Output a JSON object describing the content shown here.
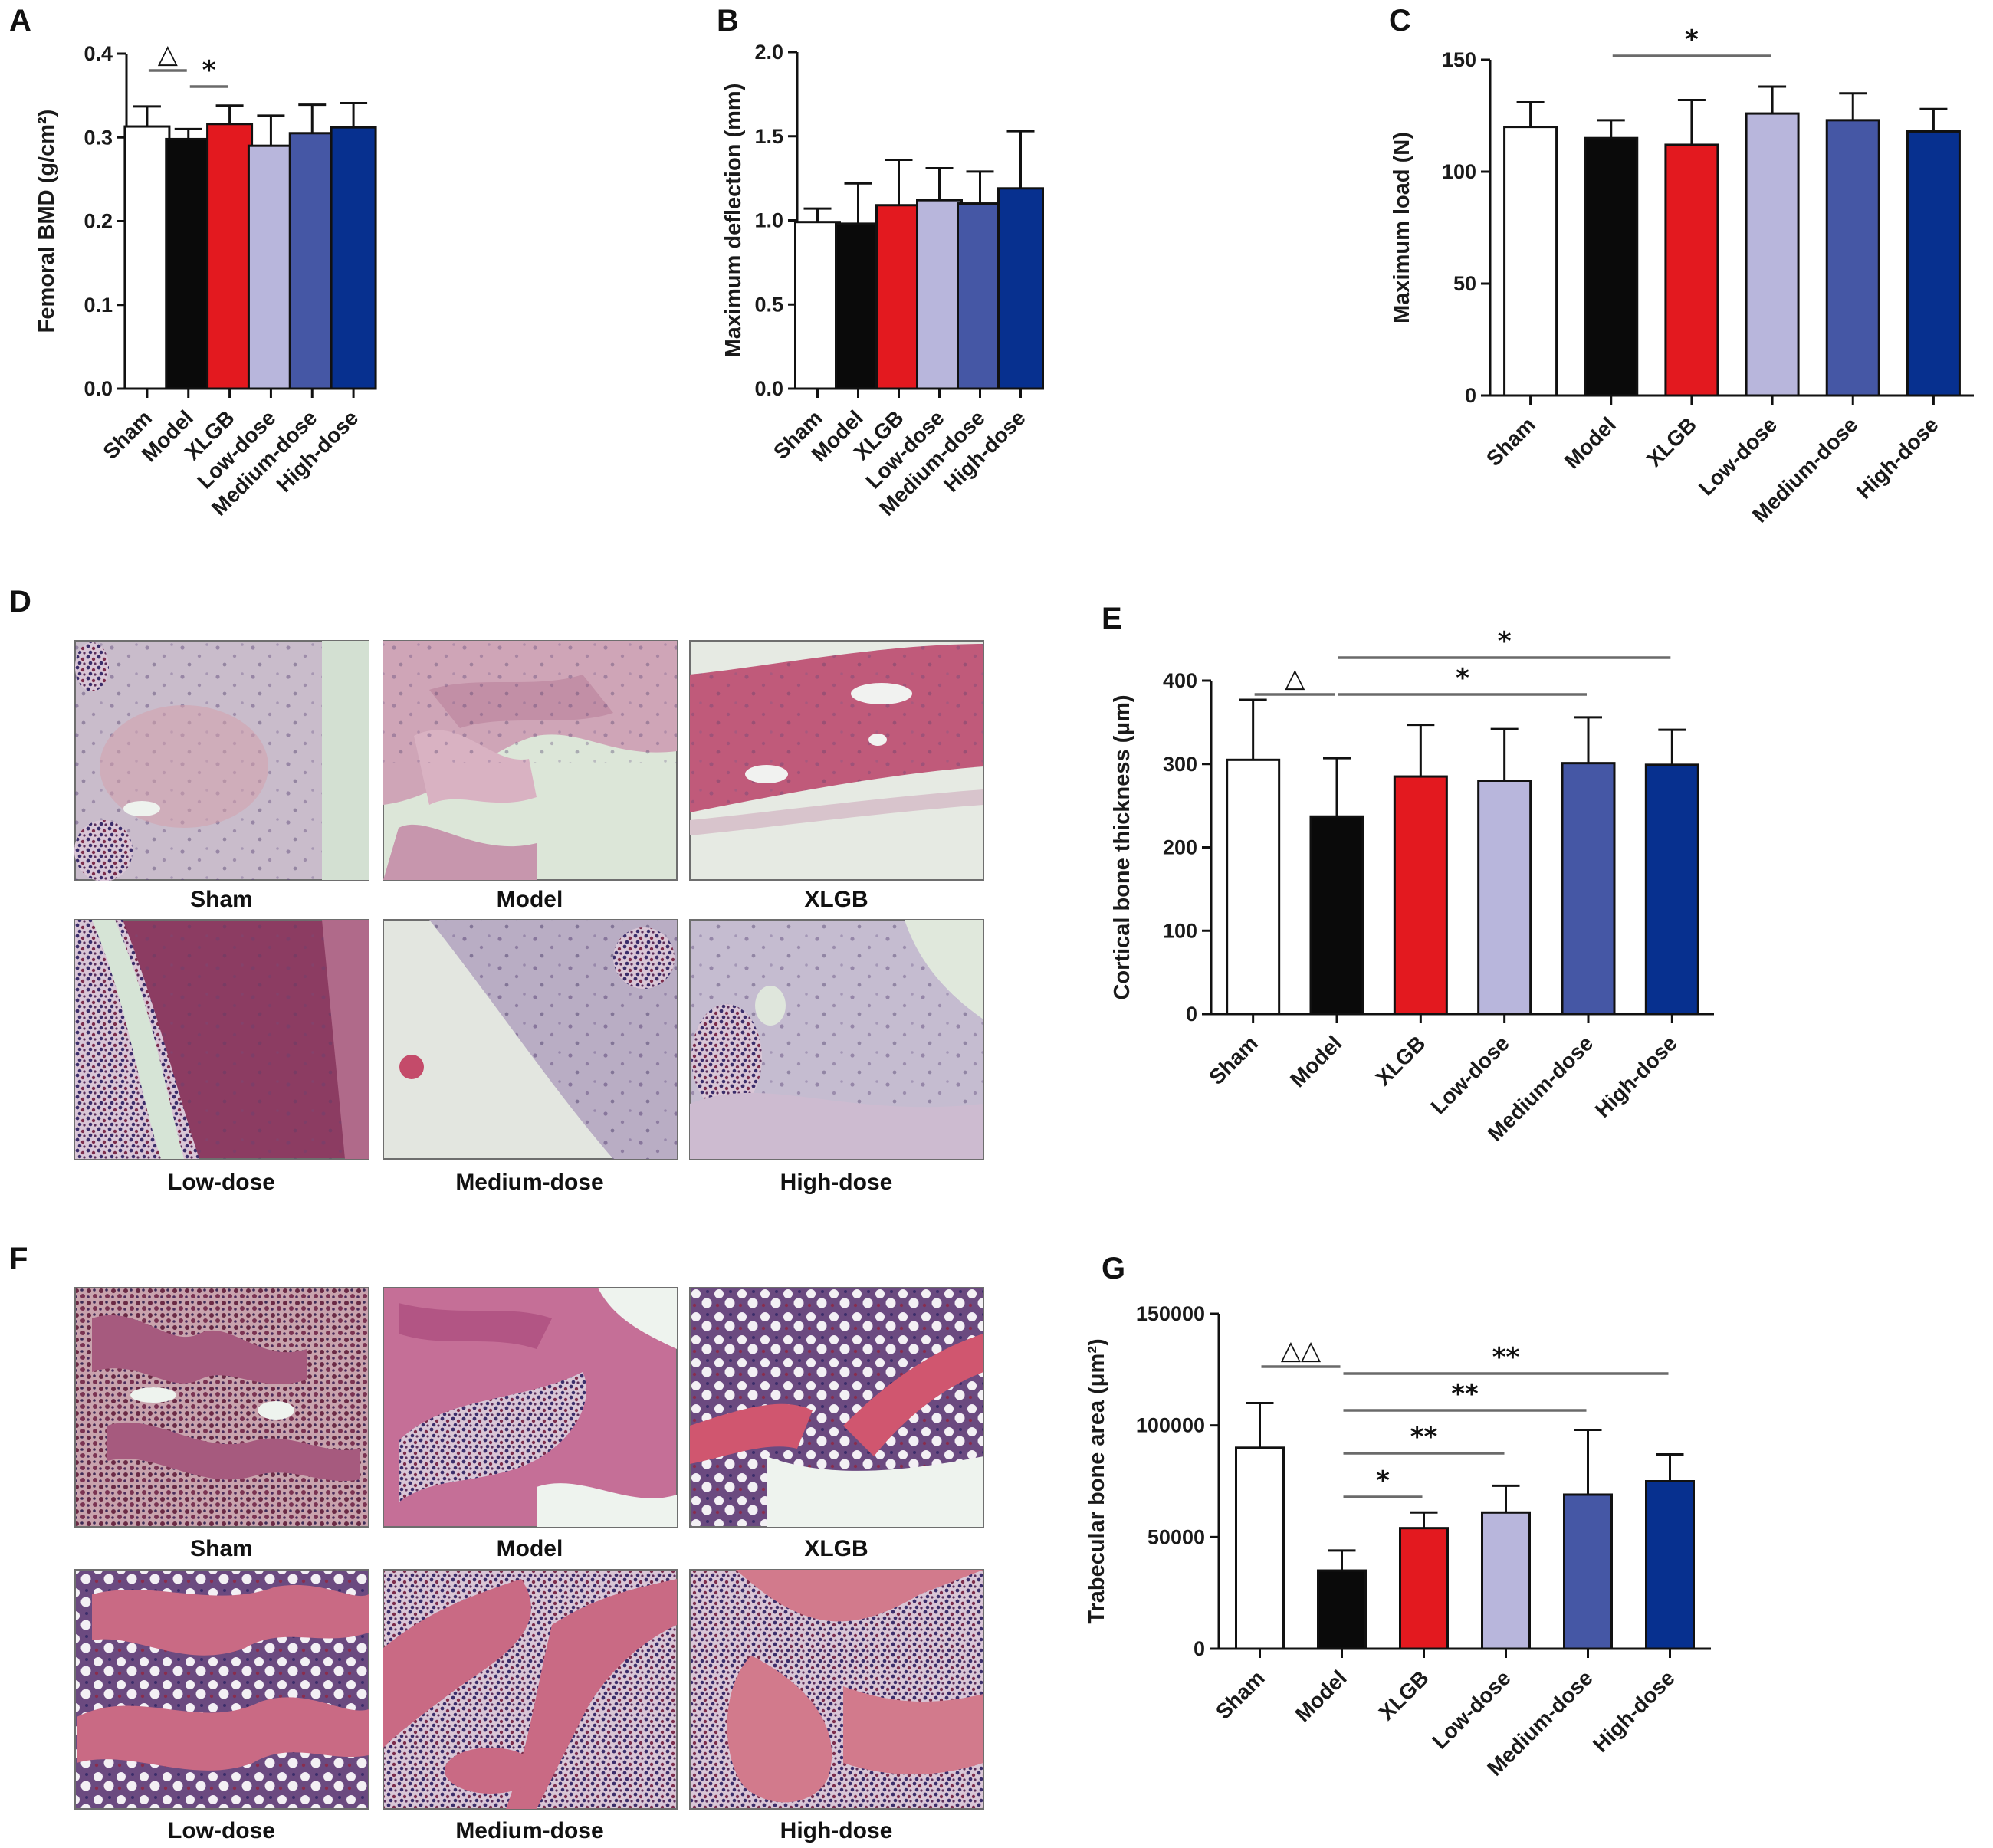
{
  "colors": {
    "Sham": "#ffffff",
    "Model": "#0a0a0a",
    "XLGB": "#e3191f",
    "Low-dose": "#b8b6dc",
    "Medium-dose": "#4557a5",
    "High-dose": "#07308f"
  },
  "panel_letters": [
    "A",
    "B",
    "C",
    "D",
    "E",
    "F",
    "G"
  ],
  "chart_data": [
    {
      "panel": "A",
      "type": "bar",
      "categories": [
        "Sham",
        "Model",
        "XLGB",
        "Low-dose",
        "Medium-dose",
        "High-dose"
      ],
      "values": [
        0.313,
        0.298,
        0.316,
        0.29,
        0.305,
        0.312
      ],
      "errors": [
        0.024,
        0.012,
        0.022,
        0.036,
        0.034,
        0.029
      ],
      "ylabel": "Femoral BMD (g/cm²)",
      "yticks": [
        "0.0",
        "0.1",
        "0.2",
        "0.3",
        "0.4"
      ],
      "ylim": [
        0,
        0.4
      ],
      "significance": [
        {
          "from": "Sham",
          "to": "Model",
          "label": "△"
        },
        {
          "from": "Model",
          "to": "XLGB",
          "label": "*"
        }
      ]
    },
    {
      "panel": "B",
      "type": "bar",
      "categories": [
        "Sham",
        "Model",
        "XLGB",
        "Low-dose",
        "Medium-dose",
        "High-dose"
      ],
      "values": [
        0.99,
        0.98,
        1.09,
        1.12,
        1.1,
        1.19
      ],
      "errors": [
        0.08,
        0.24,
        0.27,
        0.19,
        0.19,
        0.34
      ],
      "ylabel": "Maximum deflection (mm)",
      "yticks": [
        "0.0",
        "0.5",
        "1.0",
        "1.5",
        "2.0"
      ],
      "ylim": [
        0,
        2.0
      ],
      "significance": []
    },
    {
      "panel": "C",
      "type": "bar",
      "categories": [
        "Sham",
        "Model",
        "XLGB",
        "Low-dose",
        "Medium-dose",
        "High-dose"
      ],
      "values": [
        120,
        115,
        112,
        126,
        123,
        118
      ],
      "errors": [
        11,
        8,
        20,
        12,
        12,
        10
      ],
      "ylabel": "Maximum load (N)",
      "yticks": [
        "0",
        "50",
        "100",
        "150"
      ],
      "ylim": [
        0,
        150
      ],
      "significance": [
        {
          "from": "Model",
          "to": "Low-dose",
          "label": "*"
        }
      ]
    },
    {
      "panel": "E",
      "type": "bar",
      "categories": [
        "Sham",
        "Model",
        "XLGB",
        "Low-dose",
        "Medium-dose",
        "High-dose"
      ],
      "values": [
        305,
        237,
        285,
        280,
        301,
        299
      ],
      "errors": [
        72,
        70,
        62,
        62,
        55,
        42
      ],
      "ylabel": "Cortical bone thickness (μm)",
      "yticks": [
        "0",
        "100",
        "200",
        "300",
        "400"
      ],
      "ylim": [
        0,
        400
      ],
      "significance": [
        {
          "from": "Sham",
          "to": "Model",
          "label": "△"
        },
        {
          "from": "Model",
          "to": "High-dose",
          "label": "*"
        },
        {
          "from": "Model",
          "to": "Medium-dose",
          "label": "*"
        }
      ]
    },
    {
      "panel": "G",
      "type": "bar",
      "categories": [
        "Sham",
        "Model",
        "XLGB",
        "Low-dose",
        "Medium-dose",
        "High-dose"
      ],
      "values": [
        90000,
        35000,
        54000,
        61000,
        69000,
        75000
      ],
      "errors": [
        20000,
        9000,
        7000,
        12000,
        29000,
        12000
      ],
      "ylabel": "Trabecular bone area (μm²)",
      "yticks": [
        "0",
        "50000",
        "100000",
        "150000"
      ],
      "ylim": [
        0,
        150000
      ],
      "significance": [
        {
          "from": "Sham",
          "to": "Model",
          "label": "△△"
        },
        {
          "from": "Model",
          "to": "High-dose",
          "label": "**"
        },
        {
          "from": "Model",
          "to": "Medium-dose",
          "label": "**"
        },
        {
          "from": "Model",
          "to": "Low-dose",
          "label": "**"
        },
        {
          "from": "Model",
          "to": "XLGB",
          "label": "*"
        }
      ]
    }
  ],
  "image_panels": [
    {
      "panel": "D",
      "captions": [
        "Sham",
        "Model",
        "XLGB",
        "Low-dose",
        "Medium-dose",
        "High-dose"
      ]
    },
    {
      "panel": "F",
      "captions": [
        "Sham",
        "Model",
        "XLGB",
        "Low-dose",
        "Medium-dose",
        "High-dose"
      ]
    }
  ]
}
